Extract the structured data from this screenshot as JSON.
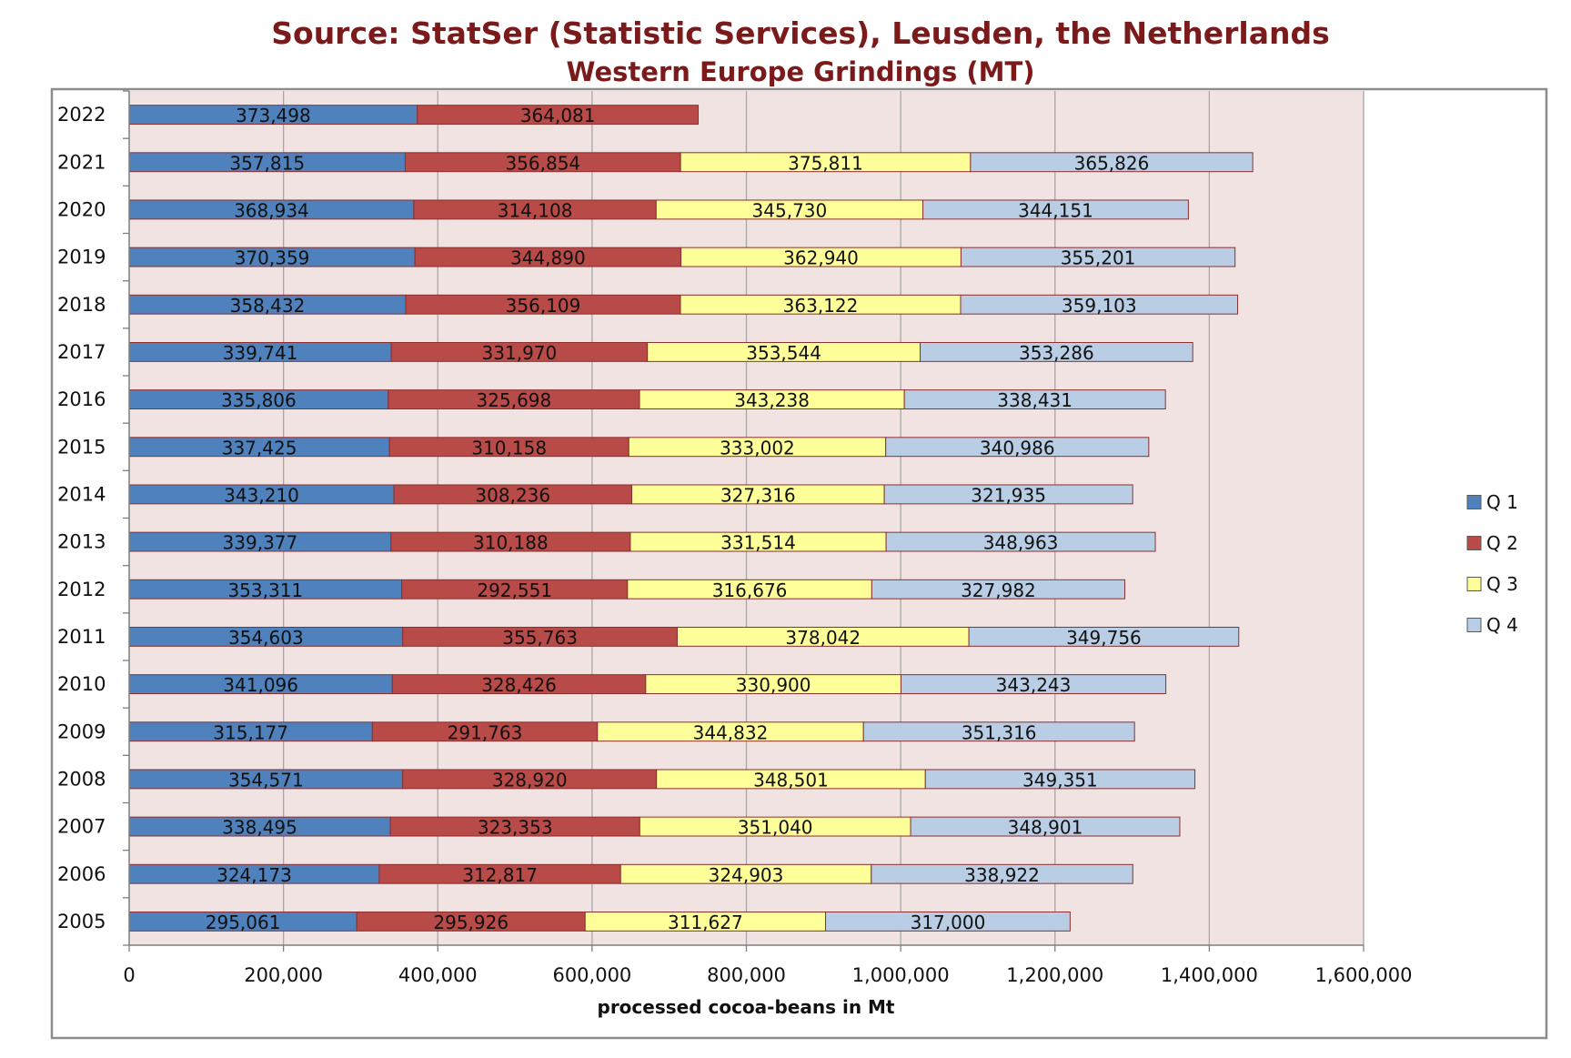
{
  "chart_data": {
    "type": "bar",
    "orientation": "horizontal",
    "stacked": true,
    "title": "Source: StatSer (Statistic Services), Leusden, the Netherlands",
    "subtitle": "Western Europe Grindings (MT)",
    "xlabel": "processed cocoa-beans in Mt",
    "ylabel": "",
    "xlim": [
      0,
      1600000
    ],
    "xticks": [
      "0",
      "200,000",
      "400,000",
      "600,000",
      "800,000",
      "1,000,000",
      "1,200,000",
      "1,400,000",
      "1,600,000"
    ],
    "grid": true,
    "legend_position": "right",
    "categories": [
      "2022",
      "2021",
      "2020",
      "2019",
      "2018",
      "2017",
      "2016",
      "2015",
      "2014",
      "2013",
      "2012",
      "2011",
      "2010",
      "2009",
      "2008",
      "2007",
      "2006",
      "2005"
    ],
    "series": [
      {
        "name": "Q 1",
        "color": "#4f81bd",
        "values": [
          373498,
          357815,
          368934,
          370359,
          358432,
          339741,
          335806,
          337425,
          343210,
          339377,
          353311,
          354603,
          341096,
          315177,
          354571,
          338495,
          324173,
          295061
        ],
        "labels": [
          "373,498",
          "357,815",
          "368,934",
          "370,359",
          "358,432",
          "339,741",
          "335,806",
          "337,425",
          "343,210",
          "339,377",
          "353,311",
          "354,603",
          "341,096",
          "315,177",
          "354,571",
          "338,495",
          "324,173",
          "295,061"
        ]
      },
      {
        "name": "Q 2",
        "color": "#b84a47",
        "values": [
          364081,
          356854,
          314108,
          344890,
          356109,
          331970,
          325698,
          310158,
          308236,
          310188,
          292551,
          355763,
          328426,
          291763,
          328920,
          323353,
          312817,
          295926
        ],
        "labels": [
          "364,081",
          "356,854",
          "314,108",
          "344,890",
          "356,109",
          "331,970",
          "325,698",
          "310,158",
          "308,236",
          "310,188",
          "292,551",
          "355,763",
          "328,426",
          "291,763",
          "328,920",
          "323,353",
          "312,817",
          "295,926"
        ]
      },
      {
        "name": "Q 3",
        "color": "#ffff99",
        "values": [
          null,
          375811,
          345730,
          362940,
          363122,
          353544,
          343238,
          333002,
          327316,
          331514,
          316676,
          378042,
          330900,
          344832,
          348501,
          351040,
          324903,
          311627
        ],
        "labels": [
          "",
          "375,811",
          "345,730",
          "362,940",
          "363,122",
          "353,544",
          "343,238",
          "333,002",
          "327,316",
          "331,514",
          "316,676",
          "378,042",
          "330,900",
          "344,832",
          "348,501",
          "351,040",
          "324,903",
          "311,627"
        ]
      },
      {
        "name": "Q 4",
        "color": "#b9cde5",
        "values": [
          null,
          365826,
          344151,
          355201,
          359103,
          353286,
          338431,
          340986,
          321935,
          348963,
          327982,
          349756,
          343243,
          351316,
          349351,
          348901,
          338922,
          317000
        ],
        "labels": [
          "",
          "365,826",
          "344,151",
          "355,201",
          "359,103",
          "353,286",
          "338,431",
          "340,986",
          "321,935",
          "348,963",
          "327,982",
          "349,756",
          "343,243",
          "351,316",
          "349,351",
          "348,901",
          "338,922",
          "317,000"
        ]
      }
    ]
  }
}
